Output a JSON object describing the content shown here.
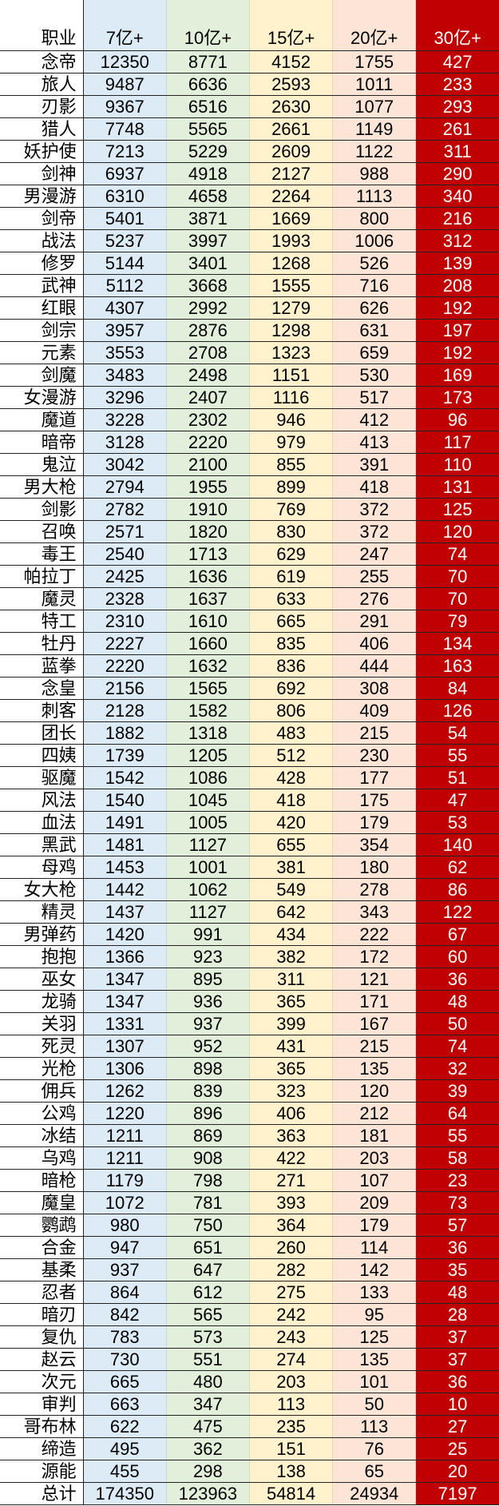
{
  "colors": {
    "col_7": "#ddebf7",
    "col_10": "#e2efda",
    "col_15": "#fff2cc",
    "col_20": "#fce4d6",
    "col_30": "#c00000"
  },
  "headers": [
    "职业",
    "7亿+",
    "10亿+",
    "15亿+",
    "20亿+",
    "30亿+"
  ],
  "rows": [
    [
      "念帝",
      "12350",
      "8771",
      "4152",
      "1755",
      "427"
    ],
    [
      "旅人",
      "9487",
      "6636",
      "2593",
      "1011",
      "233"
    ],
    [
      "刃影",
      "9367",
      "6516",
      "2630",
      "1077",
      "293"
    ],
    [
      "猎人",
      "7748",
      "5565",
      "2661",
      "1149",
      "261"
    ],
    [
      "妖护使",
      "7213",
      "5229",
      "2609",
      "1122",
      "311"
    ],
    [
      "剑神",
      "6937",
      "4918",
      "2127",
      "988",
      "290"
    ],
    [
      "男漫游",
      "6310",
      "4658",
      "2264",
      "1113",
      "340"
    ],
    [
      "剑帝",
      "5401",
      "3871",
      "1669",
      "800",
      "216"
    ],
    [
      "战法",
      "5237",
      "3997",
      "1993",
      "1006",
      "312"
    ],
    [
      "修罗",
      "5144",
      "3401",
      "1268",
      "526",
      "139"
    ],
    [
      "武神",
      "5112",
      "3668",
      "1555",
      "716",
      "208"
    ],
    [
      "红眼",
      "4307",
      "2992",
      "1279",
      "626",
      "192"
    ],
    [
      "剑宗",
      "3957",
      "2876",
      "1298",
      "631",
      "197"
    ],
    [
      "元素",
      "3553",
      "2708",
      "1323",
      "659",
      "192"
    ],
    [
      "剑魔",
      "3483",
      "2498",
      "1151",
      "530",
      "169"
    ],
    [
      "女漫游",
      "3296",
      "2407",
      "1116",
      "517",
      "173"
    ],
    [
      "魔道",
      "3228",
      "2302",
      "946",
      "412",
      "96"
    ],
    [
      "暗帝",
      "3128",
      "2220",
      "979",
      "413",
      "117"
    ],
    [
      "鬼泣",
      "3042",
      "2100",
      "855",
      "391",
      "110"
    ],
    [
      "男大枪",
      "2794",
      "1955",
      "899",
      "418",
      "131"
    ],
    [
      "剑影",
      "2782",
      "1910",
      "769",
      "372",
      "125"
    ],
    [
      "召唤",
      "2571",
      "1820",
      "830",
      "372",
      "120"
    ],
    [
      "毒王",
      "2540",
      "1713",
      "629",
      "247",
      "74"
    ],
    [
      "帕拉丁",
      "2425",
      "1636",
      "619",
      "255",
      "70"
    ],
    [
      "魔灵",
      "2328",
      "1637",
      "633",
      "276",
      "70"
    ],
    [
      "特工",
      "2310",
      "1610",
      "665",
      "291",
      "79"
    ],
    [
      "牡丹",
      "2227",
      "1660",
      "835",
      "406",
      "134"
    ],
    [
      "蓝拳",
      "2220",
      "1632",
      "836",
      "444",
      "163"
    ],
    [
      "念皇",
      "2156",
      "1565",
      "692",
      "308",
      "84"
    ],
    [
      "刺客",
      "2128",
      "1582",
      "806",
      "409",
      "126"
    ],
    [
      "团长",
      "1882",
      "1318",
      "483",
      "215",
      "54"
    ],
    [
      "四姨",
      "1739",
      "1205",
      "512",
      "230",
      "55"
    ],
    [
      "驱魔",
      "1542",
      "1086",
      "428",
      "177",
      "51"
    ],
    [
      "风法",
      "1540",
      "1045",
      "418",
      "175",
      "47"
    ],
    [
      "血法",
      "1491",
      "1005",
      "420",
      "179",
      "53"
    ],
    [
      "黑武",
      "1481",
      "1127",
      "655",
      "354",
      "140"
    ],
    [
      "母鸡",
      "1453",
      "1001",
      "381",
      "180",
      "62"
    ],
    [
      "女大枪",
      "1442",
      "1062",
      "549",
      "278",
      "86"
    ],
    [
      "精灵",
      "1437",
      "1127",
      "642",
      "343",
      "122"
    ],
    [
      "男弹药",
      "1420",
      "991",
      "434",
      "222",
      "67"
    ],
    [
      "抱抱",
      "1366",
      "923",
      "382",
      "172",
      "60"
    ],
    [
      "巫女",
      "1347",
      "895",
      "311",
      "121",
      "36"
    ],
    [
      "龙骑",
      "1347",
      "936",
      "365",
      "171",
      "48"
    ],
    [
      "关羽",
      "1331",
      "937",
      "399",
      "167",
      "50"
    ],
    [
      "死灵",
      "1307",
      "952",
      "431",
      "215",
      "74"
    ],
    [
      "光枪",
      "1306",
      "898",
      "365",
      "135",
      "32"
    ],
    [
      "佣兵",
      "1262",
      "839",
      "323",
      "120",
      "39"
    ],
    [
      "公鸡",
      "1220",
      "896",
      "406",
      "212",
      "64"
    ],
    [
      "冰结",
      "1211",
      "869",
      "363",
      "181",
      "55"
    ],
    [
      "乌鸡",
      "1211",
      "908",
      "422",
      "203",
      "58"
    ],
    [
      "暗枪",
      "1179",
      "798",
      "271",
      "107",
      "23"
    ],
    [
      "魔皇",
      "1072",
      "781",
      "393",
      "209",
      "73"
    ],
    [
      "鹦鹉",
      "980",
      "750",
      "364",
      "179",
      "57"
    ],
    [
      "合金",
      "947",
      "651",
      "260",
      "114",
      "36"
    ],
    [
      "基柔",
      "937",
      "647",
      "282",
      "142",
      "35"
    ],
    [
      "忍者",
      "864",
      "612",
      "275",
      "133",
      "48"
    ],
    [
      "暗刃",
      "842",
      "565",
      "242",
      "95",
      "28"
    ],
    [
      "复仇",
      "783",
      "573",
      "243",
      "125",
      "37"
    ],
    [
      "赵云",
      "730",
      "551",
      "274",
      "135",
      "37"
    ],
    [
      "次元",
      "665",
      "480",
      "203",
      "101",
      "36"
    ],
    [
      "审判",
      "663",
      "347",
      "113",
      "50",
      "10"
    ],
    [
      "哥布林",
      "622",
      "475",
      "235",
      "113",
      "27"
    ],
    [
      "缔造",
      "495",
      "362",
      "151",
      "76",
      "25"
    ],
    [
      "源能",
      "455",
      "298",
      "138",
      "65",
      "20"
    ]
  ],
  "total": [
    "总计",
    "174350",
    "123963",
    "54814",
    "24934",
    "7197"
  ]
}
